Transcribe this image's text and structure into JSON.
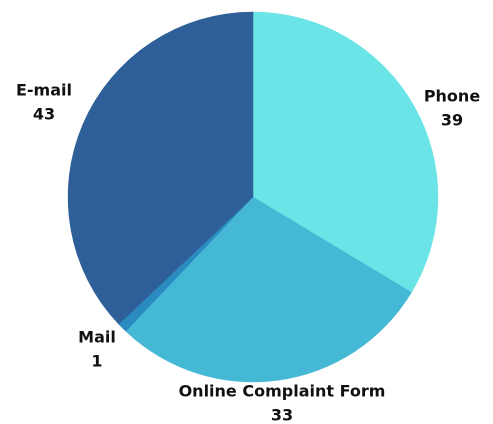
{
  "chart_data": {
    "type": "pie",
    "categories": [
      "Phone",
      "Online Complaint Form",
      "Mail",
      "E-mail"
    ],
    "values": [
      39,
      33,
      1,
      43
    ],
    "colors": [
      "#6ae4e6",
      "#45b8d6",
      "#2a8bc0",
      "#2e5f98"
    ]
  }
}
